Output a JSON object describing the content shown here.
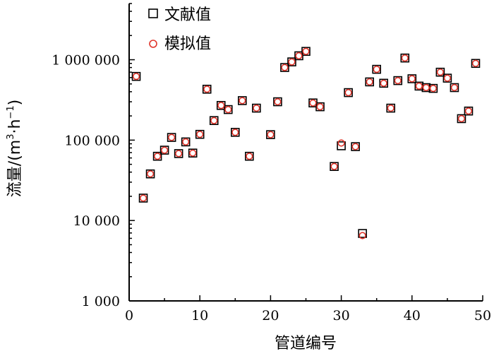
{
  "chart_data": {
    "type": "scatter",
    "xlabel": "管道编号",
    "ylabel": "流量/(m³·h⁻¹)",
    "ylabel_parts": {
      "main": "流量/(m",
      "sup1": "3",
      "mid": "·h",
      "sup2": "−1",
      "end": ")"
    },
    "xlim": [
      0,
      50
    ],
    "ylim": [
      1000,
      5000000
    ],
    "yscale": "log",
    "grid": false,
    "legend_position": "top-left",
    "x_ticks": [
      0,
      10,
      20,
      30,
      40,
      50
    ],
    "x_tick_labels": [
      "0",
      "10",
      "20",
      "30",
      "40",
      "50"
    ],
    "y_ticks": [
      1000,
      10000,
      100000,
      1000000
    ],
    "y_tick_labels": [
      "1 000",
      "10 000",
      "100 000",
      "1 000 000"
    ],
    "series": [
      {
        "name": "文献值",
        "marker": "square",
        "color": "#000000",
        "points": [
          [
            1,
            620000
          ],
          [
            2,
            19000
          ],
          [
            3,
            38000
          ],
          [
            4,
            63000
          ],
          [
            5,
            75000
          ],
          [
            6,
            108000
          ],
          [
            7,
            68000
          ],
          [
            8,
            95000
          ],
          [
            9,
            69000
          ],
          [
            10,
            118000
          ],
          [
            11,
            430000
          ],
          [
            12,
            175000
          ],
          [
            13,
            270000
          ],
          [
            14,
            240000
          ],
          [
            15,
            125000
          ],
          [
            16,
            310000
          ],
          [
            17,
            63000
          ],
          [
            18,
            250000
          ],
          [
            20,
            117000
          ],
          [
            21,
            300000
          ],
          [
            22,
            800000
          ],
          [
            23,
            940000
          ],
          [
            24,
            1120000
          ],
          [
            25,
            1270000
          ],
          [
            26,
            290000
          ],
          [
            27,
            260000
          ],
          [
            29,
            47000
          ],
          [
            30,
            85000
          ],
          [
            31,
            390000
          ],
          [
            32,
            83000
          ],
          [
            33,
            6900
          ],
          [
            34,
            530000
          ],
          [
            35,
            760000
          ],
          [
            36,
            510000
          ],
          [
            37,
            250000
          ],
          [
            38,
            550000
          ],
          [
            39,
            1050000
          ],
          [
            40,
            580000
          ],
          [
            41,
            470000
          ],
          [
            42,
            450000
          ],
          [
            43,
            440000
          ],
          [
            44,
            700000
          ],
          [
            45,
            590000
          ],
          [
            46,
            450000
          ],
          [
            47,
            185000
          ],
          [
            48,
            230000
          ],
          [
            49,
            900000
          ]
        ]
      },
      {
        "name": "模拟值",
        "marker": "circle",
        "color": "#e0352b",
        "points": [
          [
            1,
            620000
          ],
          [
            2,
            19000
          ],
          [
            3,
            38000
          ],
          [
            4,
            63000
          ],
          [
            5,
            75000
          ],
          [
            6,
            108000
          ],
          [
            7,
            68000
          ],
          [
            8,
            95000
          ],
          [
            9,
            69000
          ],
          [
            10,
            118000
          ],
          [
            11,
            430000
          ],
          [
            12,
            175000
          ],
          [
            13,
            270000
          ],
          [
            14,
            240000
          ],
          [
            15,
            125000
          ],
          [
            16,
            310000
          ],
          [
            17,
            63000
          ],
          [
            18,
            250000
          ],
          [
            20,
            117000
          ],
          [
            21,
            300000
          ],
          [
            22,
            800000
          ],
          [
            23,
            940000
          ],
          [
            24,
            1120000
          ],
          [
            25,
            1270000
          ],
          [
            26,
            290000
          ],
          [
            27,
            260000
          ],
          [
            29,
            47000
          ],
          [
            30,
            92000
          ],
          [
            31,
            390000
          ],
          [
            32,
            83000
          ],
          [
            33,
            6500
          ],
          [
            34,
            530000
          ],
          [
            35,
            760000
          ],
          [
            36,
            510000
          ],
          [
            37,
            250000
          ],
          [
            38,
            550000
          ],
          [
            39,
            1050000
          ],
          [
            40,
            580000
          ],
          [
            41,
            470000
          ],
          [
            42,
            450000
          ],
          [
            43,
            440000
          ],
          [
            44,
            700000
          ],
          [
            45,
            590000
          ],
          [
            46,
            450000
          ],
          [
            47,
            185000
          ],
          [
            48,
            230000
          ],
          [
            49,
            900000
          ]
        ]
      }
    ]
  }
}
